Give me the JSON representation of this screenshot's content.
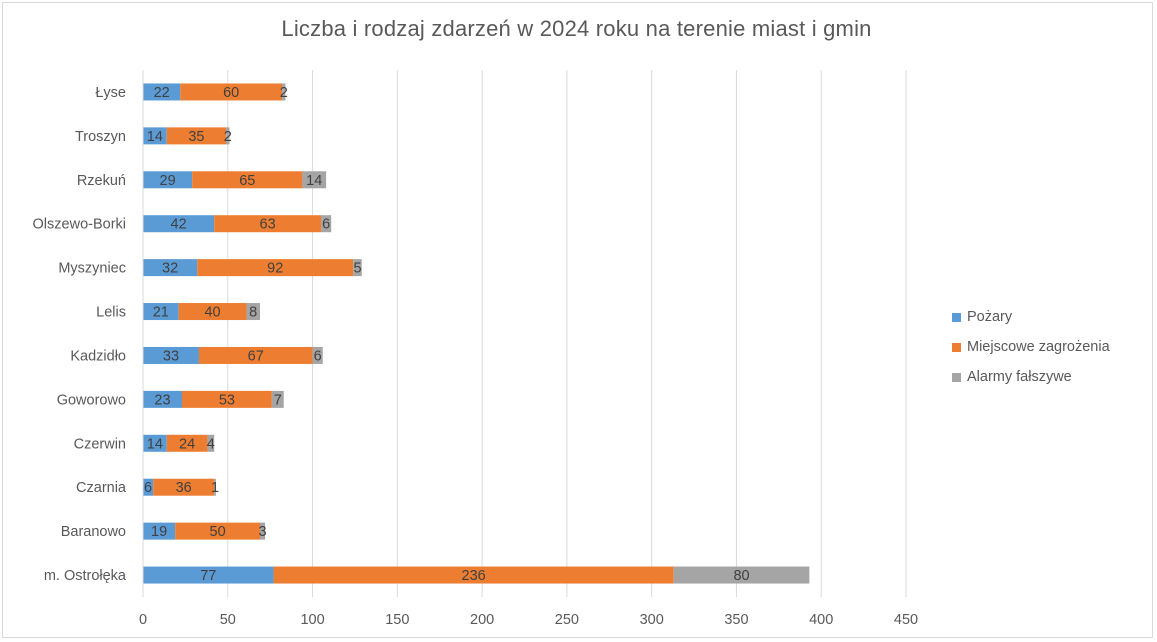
{
  "chart_data": {
    "type": "bar",
    "orientation": "horizontal",
    "stacked": true,
    "title": "Liczba i rodzaj zdarzeń  w 2024 roku na terenie miast i gmin",
    "categories": [
      "Łyse",
      "Troszyn",
      "Rzekuń",
      "Olszewo-Borki",
      "Myszyniec",
      "Lelis",
      "Kadzidło",
      "Goworowo",
      "Czerwin",
      "Czarnia",
      "Baranowo",
      "m. Ostrołęka"
    ],
    "series": [
      {
        "name": "Pożary",
        "color": "#5b9bd5",
        "values": [
          22,
          14,
          29,
          42,
          32,
          21,
          33,
          23,
          14,
          6,
          19,
          77
        ]
      },
      {
        "name": "Miejscowe zagrożenia",
        "color": "#ed7d31",
        "values": [
          60,
          35,
          65,
          63,
          92,
          40,
          67,
          53,
          24,
          36,
          50,
          236
        ]
      },
      {
        "name": "Alarmy fałszywe",
        "color": "#a5a5a5",
        "values": [
          2,
          2,
          14,
          6,
          5,
          8,
          6,
          7,
          4,
          1,
          3,
          80
        ]
      }
    ],
    "xlim": [
      0,
      450
    ],
    "xticks": [
      "0",
      "50",
      "100",
      "150",
      "200",
      "250",
      "300",
      "350",
      "400",
      "450"
    ],
    "grid": true,
    "legend_position": "right"
  }
}
